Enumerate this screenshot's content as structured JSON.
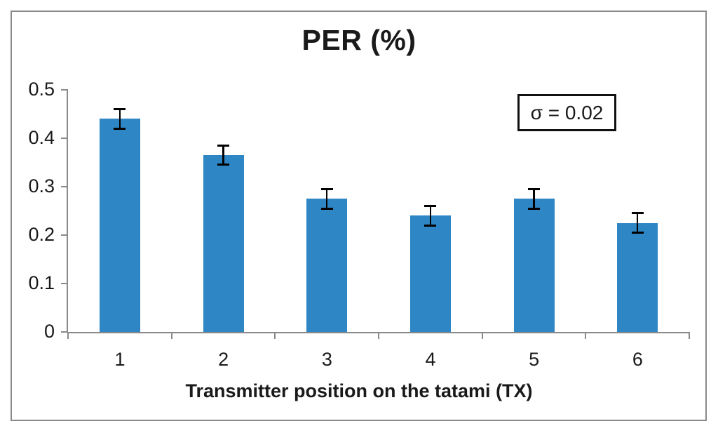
{
  "chart_data": {
    "type": "bar",
    "title": "PER (%)",
    "xlabel": "Transmitter position on the tatami (TX)",
    "ylabel": "",
    "categories": [
      "1",
      "2",
      "3",
      "4",
      "5",
      "6"
    ],
    "values": [
      0.44,
      0.365,
      0.275,
      0.24,
      0.275,
      0.225
    ],
    "error_bar": 0.02,
    "annotation": "σ = 0.02",
    "ylim": [
      0,
      0.5
    ],
    "ytick_labels": [
      "0",
      "0.1",
      "0.2",
      "0.3",
      "0.4",
      "0.5"
    ],
    "ytick_values": [
      0,
      0.1,
      0.2,
      0.3,
      0.4,
      0.5
    ],
    "grid": false,
    "legend": "none",
    "colors": {
      "bar": "#2E86C5",
      "axis": "#8A8A8A",
      "error": "#000000",
      "text": "#1A1A1A",
      "frame": "#898989",
      "background": "#FFFFFF"
    }
  }
}
